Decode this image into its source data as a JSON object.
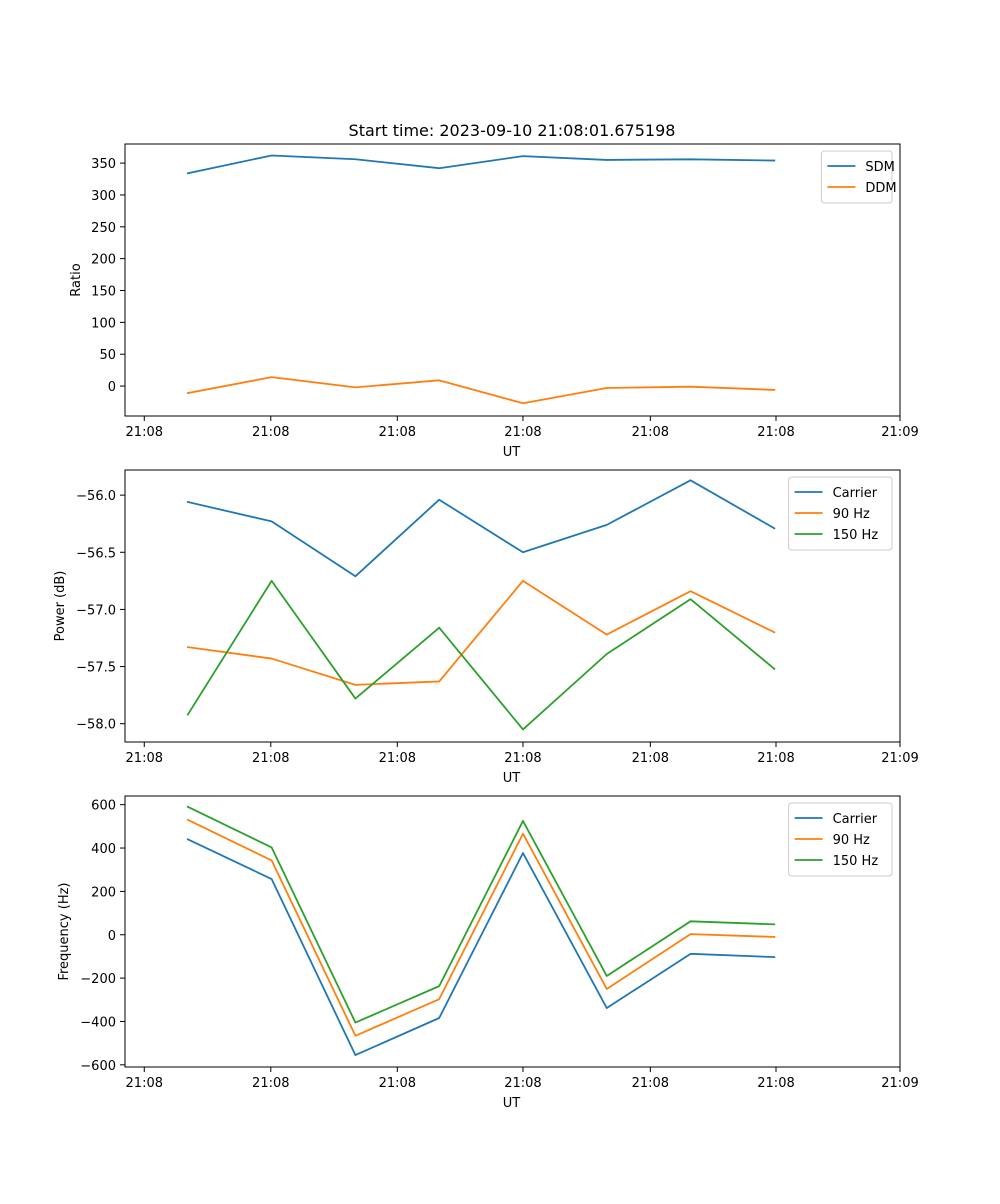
{
  "figure_title": "Start time: 2023-09-10 21:08:01.675198",
  "chart_data": [
    {
      "type": "line",
      "name": "ratio",
      "title": "Start time: 2023-09-10 21:08:01.675198",
      "xlabel": "UT",
      "ylabel": "Ratio",
      "x_sample_index": [
        0,
        1,
        2,
        3,
        4,
        5,
        6,
        7
      ],
      "xlim": [
        -0.75,
        8.5
      ],
      "x_ticks": [
        -0.52,
        0.99,
        2.5,
        4.0,
        5.52,
        7.02,
        8.5
      ],
      "x_tick_labels": [
        "21:08",
        "21:08",
        "21:08",
        "21:08",
        "21:08",
        "21:08",
        "21:09"
      ],
      "ylim": [
        -47,
        380
      ],
      "y_ticks": [
        0,
        50,
        100,
        150,
        200,
        250,
        300,
        350
      ],
      "y_tick_labels": [
        "0",
        "50",
        "100",
        "150",
        "200",
        "250",
        "300",
        "350"
      ],
      "legend_position": "top-right",
      "series": [
        {
          "name": "SDM",
          "color": "#1f77b4",
          "values": [
            334,
            362,
            356,
            342,
            361,
            355,
            356,
            354
          ]
        },
        {
          "name": "DDM",
          "color": "#ff7f0e",
          "values": [
            -11,
            14,
            -2,
            9,
            -27,
            -3,
            -1,
            -6
          ]
        }
      ]
    },
    {
      "type": "line",
      "name": "power",
      "title": "",
      "xlabel": "UT",
      "ylabel": "Power (dB)",
      "x_sample_index": [
        0,
        1,
        2,
        3,
        4,
        5,
        6,
        7
      ],
      "xlim": [
        -0.75,
        8.5
      ],
      "x_ticks": [
        -0.52,
        0.99,
        2.5,
        4.0,
        5.52,
        7.02,
        8.5
      ],
      "x_tick_labels": [
        "21:08",
        "21:08",
        "21:08",
        "21:08",
        "21:08",
        "21:08",
        "21:09"
      ],
      "ylim": [
        -58.16,
        -55.78
      ],
      "y_ticks": [
        -56.0,
        -56.5,
        -57.0,
        -57.5,
        -58.0
      ],
      "y_tick_labels": [
        "−56.0",
        "−56.5",
        "−57.0",
        "−57.5",
        "−58.0"
      ],
      "legend_position": "top-right",
      "series": [
        {
          "name": "Carrier",
          "color": "#1f77b4",
          "values": [
            -56.06,
            -56.23,
            -56.71,
            -56.04,
            -56.5,
            -56.26,
            -55.87,
            -56.29
          ]
        },
        {
          "name": "90 Hz",
          "color": "#ff7f0e",
          "values": [
            -57.33,
            -57.43,
            -57.66,
            -57.63,
            -56.75,
            -57.22,
            -56.84,
            -57.2
          ]
        },
        {
          "name": "150 Hz",
          "color": "#2ca02c",
          "values": [
            -57.92,
            -56.75,
            -57.78,
            -57.16,
            -58.05,
            -57.39,
            -56.91,
            -57.52
          ]
        }
      ]
    },
    {
      "type": "line",
      "name": "frequency",
      "title": "",
      "xlabel": "UT",
      "ylabel": "Frequency (Hz)",
      "x_sample_index": [
        0,
        1,
        2,
        3,
        4,
        5,
        6,
        7
      ],
      "xlim": [
        -0.75,
        8.5
      ],
      "x_ticks": [
        -0.52,
        0.99,
        2.5,
        4.0,
        5.52,
        7.02,
        8.5
      ],
      "x_tick_labels": [
        "21:08",
        "21:08",
        "21:08",
        "21:08",
        "21:08",
        "21:08",
        "21:09"
      ],
      "ylim": [
        -610,
        640
      ],
      "y_ticks": [
        600,
        400,
        200,
        0,
        -200,
        -400,
        -600
      ],
      "y_tick_labels": [
        "600",
        "400",
        "200",
        "0",
        "−200",
        "−400",
        "−600"
      ],
      "legend_position": "top-right",
      "series": [
        {
          "name": "Carrier",
          "color": "#1f77b4",
          "values": [
            440,
            257,
            -555,
            -384,
            377,
            -338,
            -88,
            -103
          ]
        },
        {
          "name": "90 Hz",
          "color": "#ff7f0e",
          "values": [
            530,
            343,
            -466,
            -297,
            466,
            -250,
            3,
            -10
          ]
        },
        {
          "name": "150 Hz",
          "color": "#2ca02c",
          "values": [
            590,
            403,
            -405,
            -237,
            525,
            -190,
            62,
            48
          ]
        }
      ]
    }
  ]
}
